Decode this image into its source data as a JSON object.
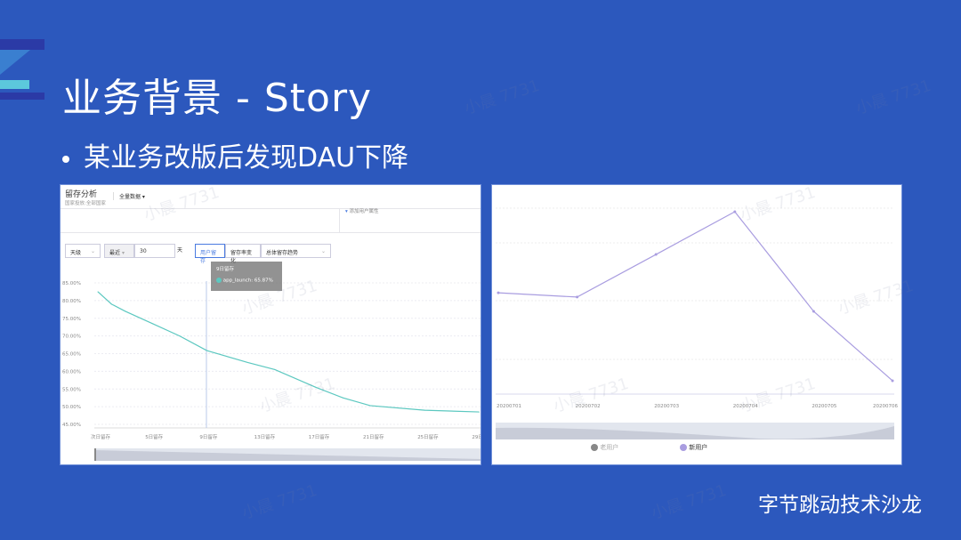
{
  "slide": {
    "title": "业务背景 - Story",
    "bullet": "某业务改版后发现DAU下降",
    "footer": "字节跳动技术沙龙",
    "watermark": "小晨 7731",
    "colors": {
      "background": "#2c58bd",
      "left_line": "#5cc8c0",
      "right_line": "#a99de0"
    }
  },
  "left_panel": {
    "header_title": "留存分析",
    "header_subtitle": "国家投放:全部国家",
    "data_selector": "全量数据",
    "add_attr": "添加用户属性",
    "granularity": "天级",
    "range_mode": "最近",
    "range_value": "30",
    "range_unit": "天",
    "tabs": [
      "用户留存",
      "留存率变化"
    ],
    "trend_select": "总体留存趋势",
    "tooltip": {
      "title": "9日留存",
      "series": "app_launch",
      "value": "65.87%"
    }
  },
  "chart_data": [
    {
      "type": "line",
      "yticks": [
        "85.00%",
        "80.00%",
        "75.00%",
        "70.00%",
        "65.00%",
        "60.00%",
        "55.00%",
        "50.00%",
        "45.00%"
      ],
      "ylim": [
        45,
        85
      ],
      "xticks": [
        "次日留存",
        "5日留存",
        "9日留存",
        "13日留存",
        "17日留存",
        "21日留存",
        "25日留存",
        "29日留存"
      ],
      "grid": true,
      "series": [
        {
          "name": "app_launch",
          "x": [
            1,
            2,
            3,
            5,
            7,
            9,
            12,
            14,
            17,
            19,
            21,
            25,
            29
          ],
          "values": [
            82.5,
            79,
            77,
            73.5,
            70,
            65.87,
            62.5,
            60.5,
            55.5,
            52.5,
            50.3,
            49,
            48.5
          ]
        }
      ]
    },
    {
      "type": "line",
      "categories": [
        "20200701",
        "20200702",
        "20200703",
        "20200704",
        "20200705",
        "20200706"
      ],
      "values": [
        54.5,
        52.2,
        75.1,
        98.1,
        44.5,
        7.2
      ],
      "ylim": [
        0,
        100
      ],
      "grid": true,
      "legend": [
        "老用户",
        "新用户"
      ],
      "legend_placement": "bottom"
    }
  ]
}
